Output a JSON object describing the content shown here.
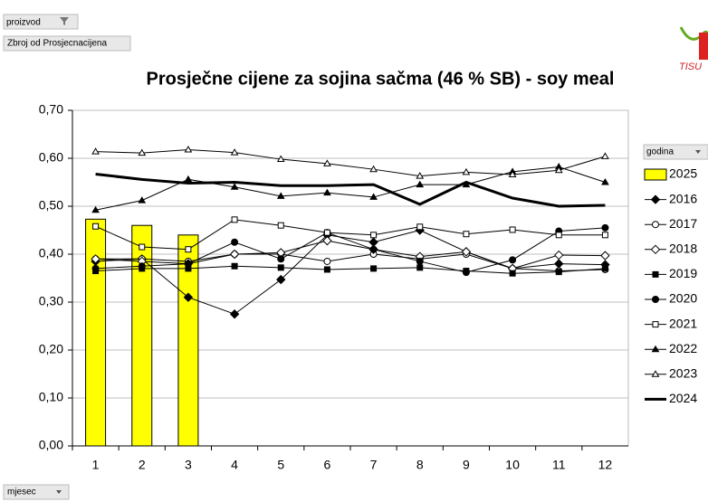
{
  "chart_data": {
    "type": "combo",
    "title": "Prosječne cijene za sojina sačma (46 % SB) - soy meal",
    "filter_label": "proizvod",
    "value_field": "Zbroj od Prosjecnacijena",
    "axis_field": "mjesec",
    "legend_title": "godina",
    "logo_text": "TISU",
    "categories": [
      "1",
      "2",
      "3",
      "4",
      "5",
      "6",
      "7",
      "8",
      "9",
      "10",
      "11",
      "12"
    ],
    "ylim": [
      0,
      0.7
    ],
    "yticks": [
      {
        "value": 0,
        "label": "0,00"
      },
      {
        "value": 0.1,
        "label": "0,10"
      },
      {
        "value": 0.2,
        "label": "0,20"
      },
      {
        "value": 0.3,
        "label": "0,30"
      },
      {
        "value": 0.4,
        "label": "0,40"
      },
      {
        "value": 0.5,
        "label": "0,50"
      },
      {
        "value": 0.6,
        "label": "0,60"
      },
      {
        "value": 0.7,
        "label": "0,70"
      }
    ],
    "grid": true,
    "legend": "right",
    "series": [
      {
        "name": "2025",
        "type": "bar",
        "color": "#ffff00",
        "values": [
          0.473,
          0.46,
          0.44,
          null,
          null,
          null,
          null,
          null,
          null,
          null,
          null,
          null
        ]
      },
      {
        "name": "2016",
        "type": "line",
        "marker": "diamond-filled",
        "color": "#000000",
        "values": [
          0.385,
          0.39,
          0.31,
          0.275,
          0.347,
          0.44,
          0.425,
          0.45,
          0.405,
          0.37,
          0.38,
          0.378
        ]
      },
      {
        "name": "2017",
        "type": "line",
        "marker": "circle-open",
        "color": "#000000",
        "values": [
          0.39,
          0.39,
          0.385,
          0.4,
          0.4,
          0.385,
          0.4,
          0.39,
          0.4,
          0.37,
          0.365,
          0.368
        ]
      },
      {
        "name": "2018",
        "type": "line",
        "marker": "diamond-open",
        "color": "#000000",
        "values": [
          0.39,
          0.385,
          0.38,
          0.4,
          0.403,
          0.428,
          0.41,
          0.395,
          0.405,
          0.37,
          0.398,
          0.397
        ]
      },
      {
        "name": "2019",
        "type": "line",
        "marker": "square-filled",
        "color": "#000000",
        "values": [
          0.365,
          0.37,
          0.37,
          0.375,
          0.372,
          0.368,
          0.37,
          0.372,
          0.365,
          0.36,
          0.363,
          0.37
        ]
      },
      {
        "name": "2020",
        "type": "line",
        "marker": "circle-filled",
        "color": "#000000",
        "values": [
          0.37,
          0.375,
          0.38,
          0.425,
          0.39,
          0.445,
          0.41,
          0.385,
          0.362,
          0.388,
          0.448,
          0.455
        ]
      },
      {
        "name": "2021",
        "type": "line",
        "marker": "square-open",
        "color": "#000000",
        "values": [
          0.458,
          0.415,
          0.41,
          0.472,
          0.46,
          0.445,
          0.44,
          0.457,
          0.442,
          0.451,
          0.44,
          0.44
        ]
      },
      {
        "name": "2022",
        "type": "line",
        "marker": "triangle-filled",
        "color": "#000000",
        "values": [
          0.492,
          0.512,
          0.556,
          0.54,
          0.521,
          0.528,
          0.519,
          0.545,
          0.545,
          0.572,
          0.582,
          0.55
        ]
      },
      {
        "name": "2023",
        "type": "line",
        "marker": "triangle-open",
        "color": "#000000",
        "values": [
          0.614,
          0.611,
          0.618,
          0.612,
          0.598,
          0.589,
          0.577,
          0.563,
          0.571,
          0.566,
          0.575,
          0.604
        ]
      },
      {
        "name": "2024",
        "type": "line",
        "marker": "none",
        "width": 3,
        "color": "#000000",
        "values": [
          0.567,
          0.556,
          0.548,
          0.55,
          0.543,
          0.543,
          0.545,
          0.504,
          0.55,
          0.517,
          0.5,
          0.502
        ]
      }
    ]
  }
}
